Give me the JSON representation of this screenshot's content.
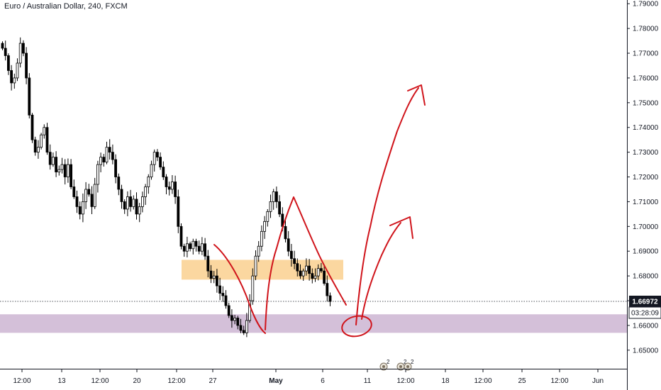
{
  "chart_data": {
    "type": "candlestick",
    "title": "Euro / Australian Dollar, 240, FXCM",
    "ylim": [
      1.6425,
      1.7915
    ],
    "y_ticks": [
      "1.79000",
      "1.78000",
      "1.77000",
      "1.76000",
      "1.75000",
      "1.74000",
      "1.73000",
      "1.72000",
      "1.71000",
      "1.70000",
      "1.69000",
      "1.68000",
      "1.67000",
      "1.66000",
      "1.65000"
    ],
    "x_ticks": [
      {
        "label": "12:00",
        "bold": false
      },
      {
        "label": "13",
        "bold": false
      },
      {
        "label": "12:00",
        "bold": false
      },
      {
        "label": "20",
        "bold": false
      },
      {
        "label": "12:00",
        "bold": false
      },
      {
        "label": "27",
        "bold": false
      },
      {
        "label": "May",
        "bold": true
      },
      {
        "label": "6",
        "bold": false
      },
      {
        "label": "11",
        "bold": false
      },
      {
        "label": "12:00",
        "bold": false
      },
      {
        "label": "18",
        "bold": false
      },
      {
        "label": "12:00",
        "bold": false
      },
      {
        "label": "25",
        "bold": false
      },
      {
        "label": "12:00",
        "bold": false
      },
      {
        "label": "Jun",
        "bold": false
      }
    ],
    "price_badge": {
      "value": "1.66972",
      "countdown": "03:28:09",
      "price": 1.66972,
      "color": "#131722"
    },
    "closes": [
      1.772,
      1.769,
      1.763,
      1.758,
      1.76,
      1.766,
      1.774,
      1.77,
      1.76,
      1.745,
      1.735,
      1.73,
      1.732,
      1.737,
      1.74,
      1.73,
      1.725,
      1.728,
      1.722,
      1.723,
      1.725,
      1.72,
      1.725,
      1.716,
      1.712,
      1.708,
      1.705,
      1.71,
      1.715,
      1.713,
      1.708,
      1.717,
      1.725,
      1.728,
      1.726,
      1.732,
      1.73,
      1.727,
      1.72,
      1.715,
      1.71,
      1.707,
      1.712,
      1.708,
      1.711,
      1.705,
      1.708,
      1.712,
      1.716,
      1.72,
      1.725,
      1.73,
      1.728,
      1.724,
      1.72,
      1.716,
      1.715,
      1.718,
      1.712,
      1.7,
      1.692,
      1.69,
      1.693,
      1.691,
      1.694,
      1.692,
      1.69,
      1.693,
      1.688,
      1.682,
      1.679,
      1.68,
      1.676,
      1.673,
      1.672,
      1.668,
      1.664,
      1.662,
      1.663,
      1.66,
      1.658,
      1.657,
      1.662,
      1.67,
      1.68,
      1.688,
      1.692,
      1.698,
      1.702,
      1.706,
      1.71,
      1.714,
      1.71,
      1.705,
      1.7,
      1.695,
      1.69,
      1.687,
      1.685,
      1.682,
      1.68,
      1.682,
      1.684,
      1.681,
      1.679,
      1.68,
      1.683,
      1.682,
      1.677,
      1.672,
      1.6697
    ],
    "highlighted_zones": [
      {
        "y_high": 1.6865,
        "y_low": 1.6785,
        "color": "#fbd7a0"
      },
      {
        "y_high": 1.6645,
        "y_low": 1.657,
        "color": "#d4c0d9"
      }
    ],
    "annotations": [
      {
        "type": "drawn-path",
        "color": "#d0141b",
        "desc": "hand-drawn W pattern and upward arrows"
      }
    ],
    "events": [
      {
        "label": "2",
        "x_date": "May 10"
      },
      {
        "label": "2",
        "x_date": "May 12"
      },
      {
        "label": "2",
        "x_date": "May 13"
      }
    ],
    "grid": false,
    "legend": "none",
    "colors": {
      "candle": "#000000",
      "axis_text": "#131722",
      "drawing": "#d0141b"
    }
  }
}
